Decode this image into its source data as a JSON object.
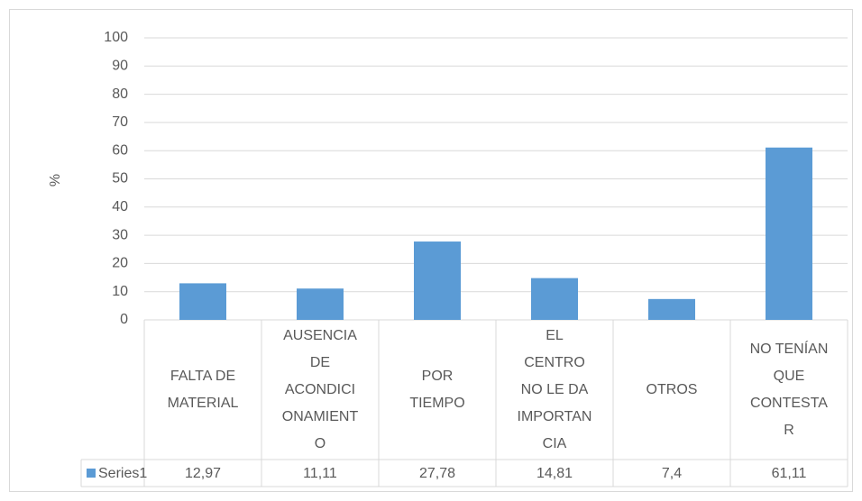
{
  "chart_data": {
    "type": "bar",
    "y_label": "%",
    "categories": [
      "FALTA DE MATERIAL",
      "AUSENCIA DE ACONDICIONAMIENTO",
      "POR TIEMPO",
      "EL CENTRO NO LE DA IMPORTANCIA",
      "OTROS",
      "NO TENÍAN QUE CONTESTAR"
    ],
    "series": [
      {
        "name": "Series1",
        "color": "#5b9bd5",
        "values": [
          12.97,
          11.11,
          27.78,
          14.81,
          7.4,
          61.11
        ],
        "value_labels": [
          "12,97",
          "11,11",
          "27,78",
          "14,81",
          "7,4",
          "61,11"
        ]
      }
    ],
    "ylim": [
      0,
      100
    ],
    "yticks": [
      0,
      10,
      20,
      30,
      40,
      50,
      60,
      70,
      80,
      90,
      100
    ],
    "grid": true
  }
}
